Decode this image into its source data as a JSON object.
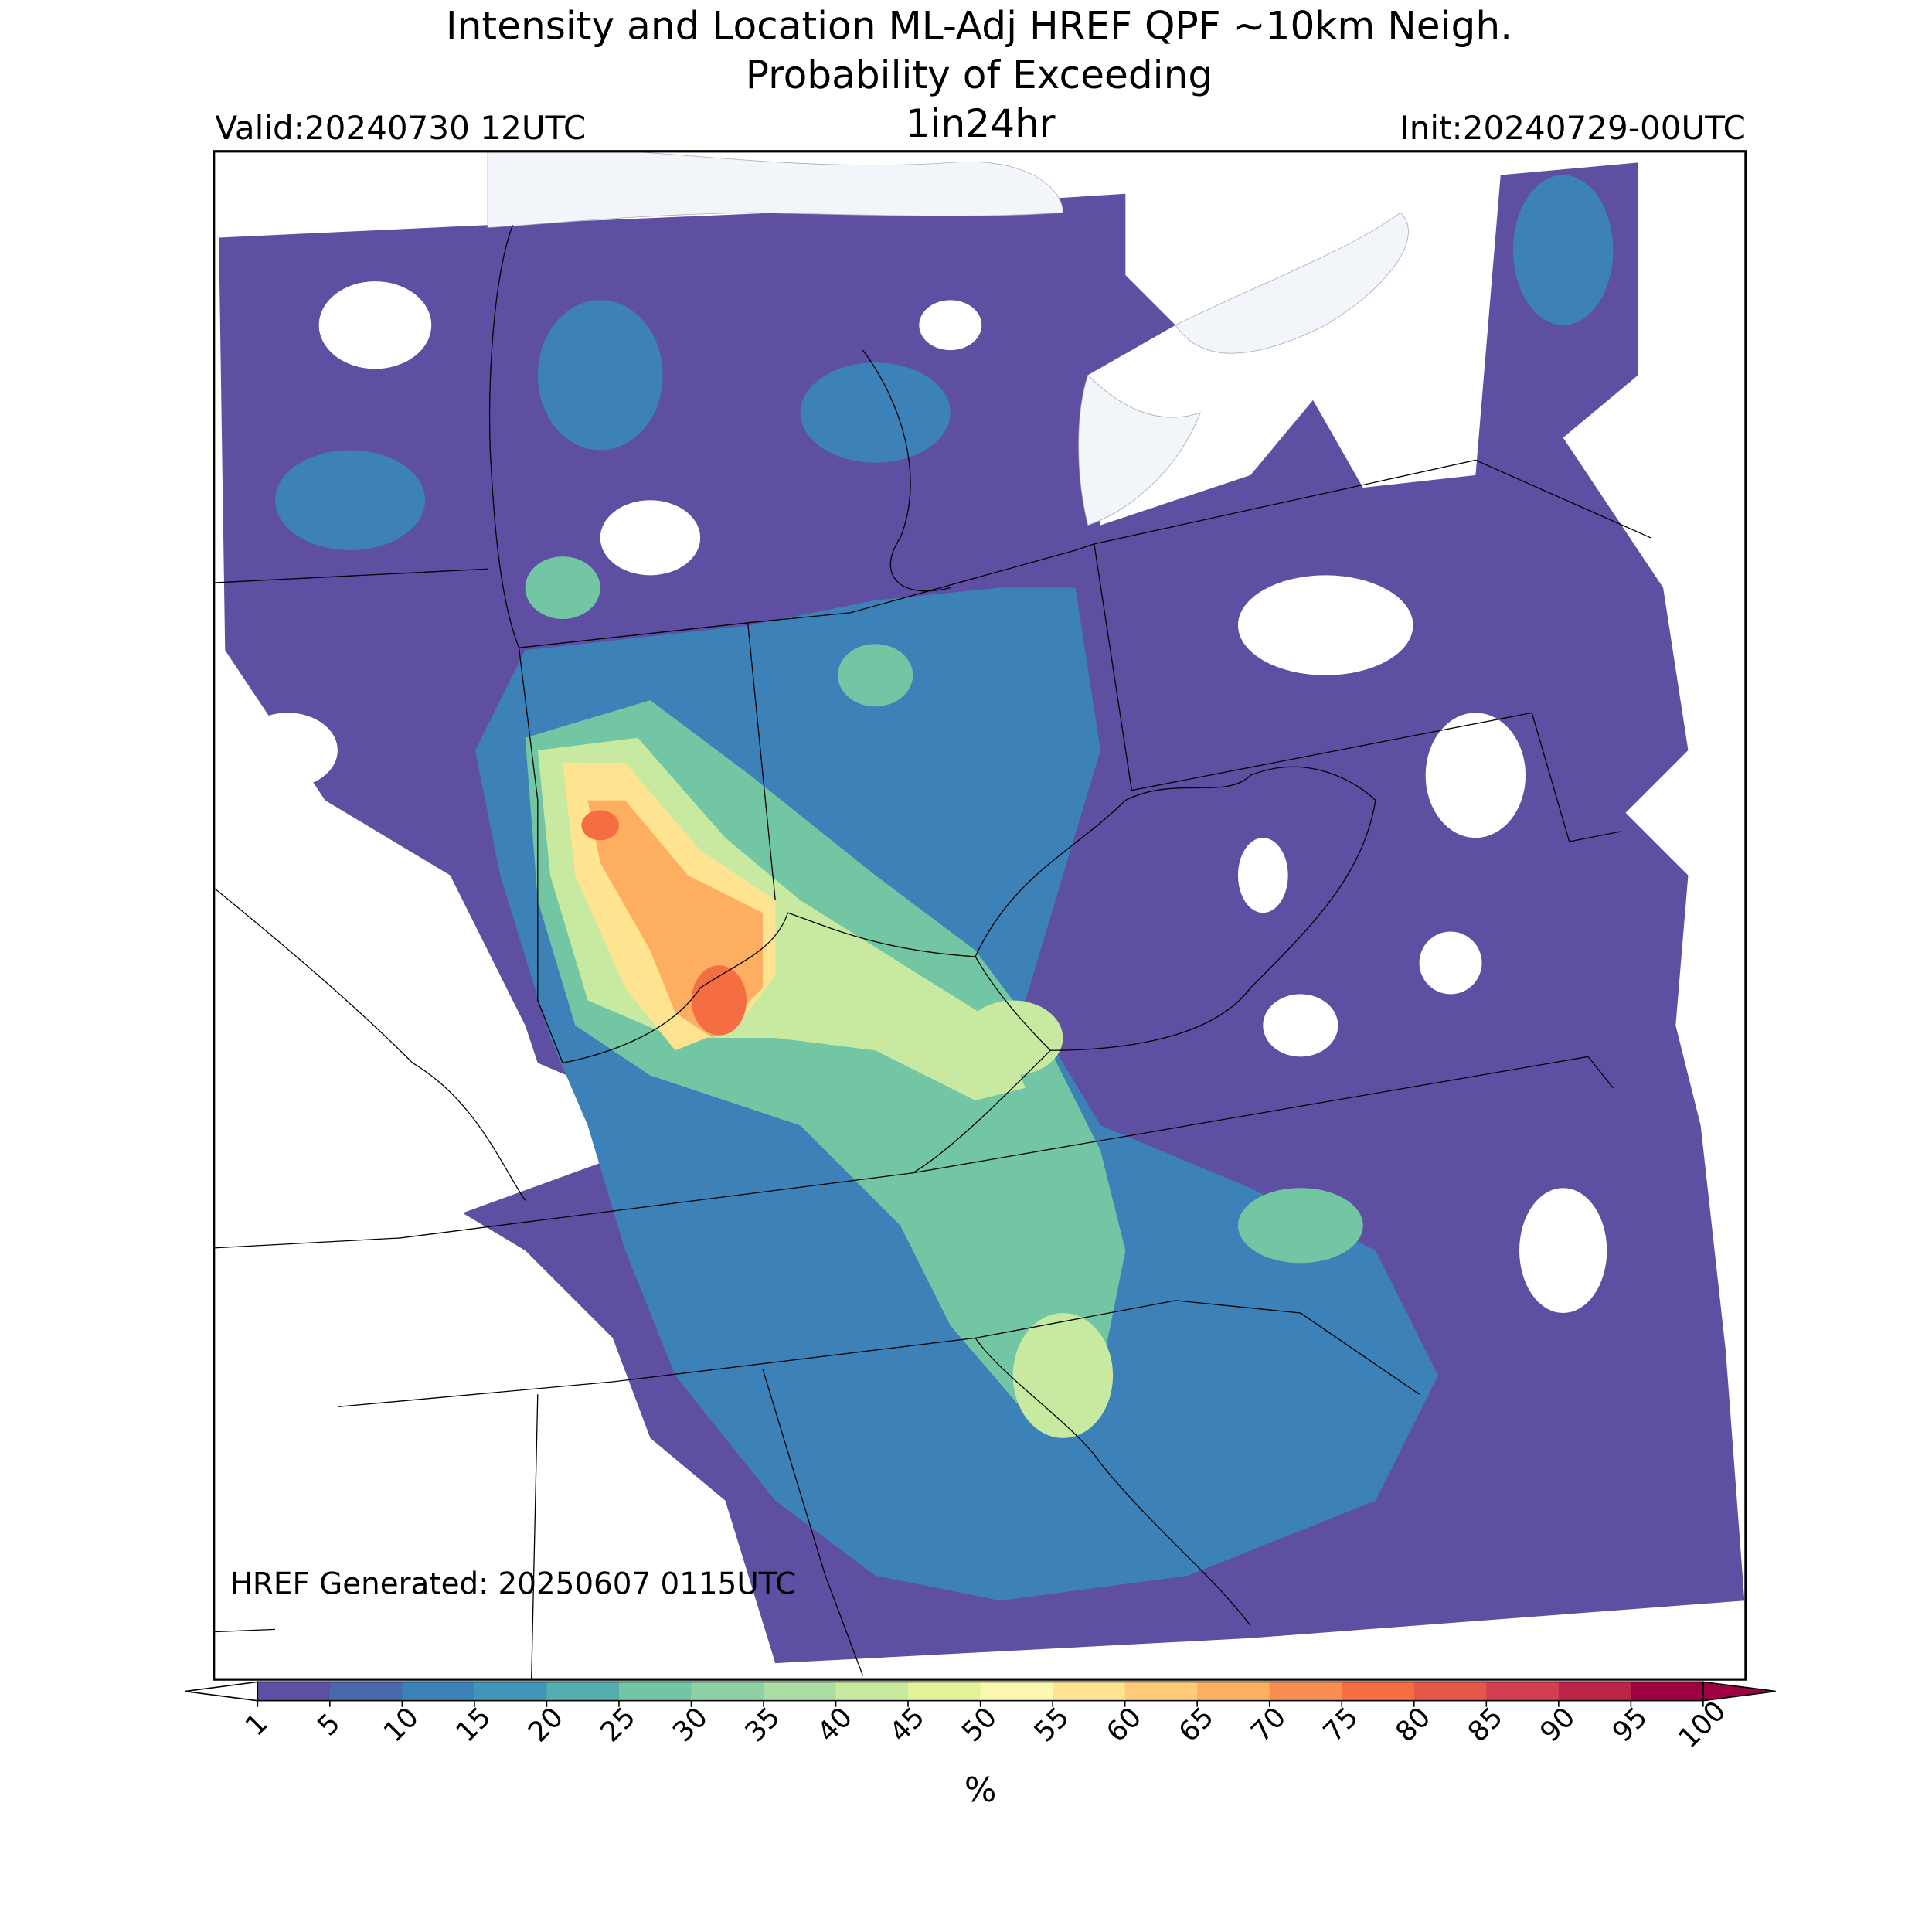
{
  "header": {
    "title_lines": [
      "Intensity and Location ML-Adj HREF QPF ~10km Neigh.",
      "Probability of Exceeding"
    ],
    "subtitle": "1in24hr",
    "valid": "Valid:20240730 12UTC",
    "init": "Init:20240729-00UTC"
  },
  "map": {
    "generated": "HREF Generated: 20250607 0115UTC"
  },
  "colorbar": {
    "ticks": [
      1,
      5,
      10,
      15,
      20,
      25,
      30,
      35,
      40,
      45,
      50,
      55,
      60,
      65,
      70,
      75,
      80,
      85,
      90,
      95,
      100
    ],
    "colors": [
      "#5e4fa2",
      "#4a68ae",
      "#3c82b9",
      "#3f96b7",
      "#54aead",
      "#73c6a4",
      "#8ed1a4",
      "#abdda4",
      "#c7e9a0",
      "#e2f397",
      "#fbf8b0",
      "#fee491",
      "#fdcb79",
      "#fdae61",
      "#f88e52",
      "#f46d43",
      "#e55749",
      "#d53e4f",
      "#bd2349",
      "#9e0142"
    ],
    "under_color": "#ffffff",
    "over_color": "#9e0142",
    "label": "%"
  }
}
